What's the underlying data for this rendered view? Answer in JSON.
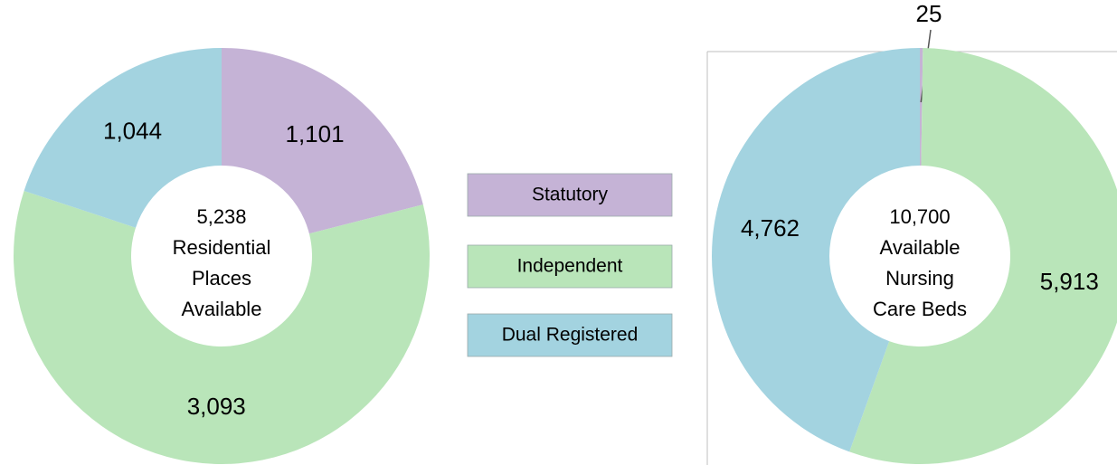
{
  "chart_data": [
    {
      "type": "donut",
      "categories": [
        "Statutory",
        "Independent",
        "Dual Registered"
      ],
      "values": [
        1101,
        3093,
        1044
      ],
      "value_labels": [
        "1,101",
        "3,093",
        "1,044"
      ],
      "colors": [
        "#c5b3d6",
        "#b9e5b9",
        "#a3d3e0"
      ],
      "center_text": [
        "5,238",
        "Residential",
        "Places",
        "Available"
      ]
    },
    {
      "type": "donut",
      "categories": [
        "Statutory",
        "Independent",
        "Dual Registered"
      ],
      "values": [
        25,
        5913,
        4762
      ],
      "value_labels": [
        "25",
        "5,913",
        "4,762"
      ],
      "colors": [
        "#c5b3d6",
        "#b9e5b9",
        "#a3d3e0"
      ],
      "center_text": [
        "10,700",
        "Available",
        "Nursing",
        "Care Beds"
      ]
    }
  ]
}
